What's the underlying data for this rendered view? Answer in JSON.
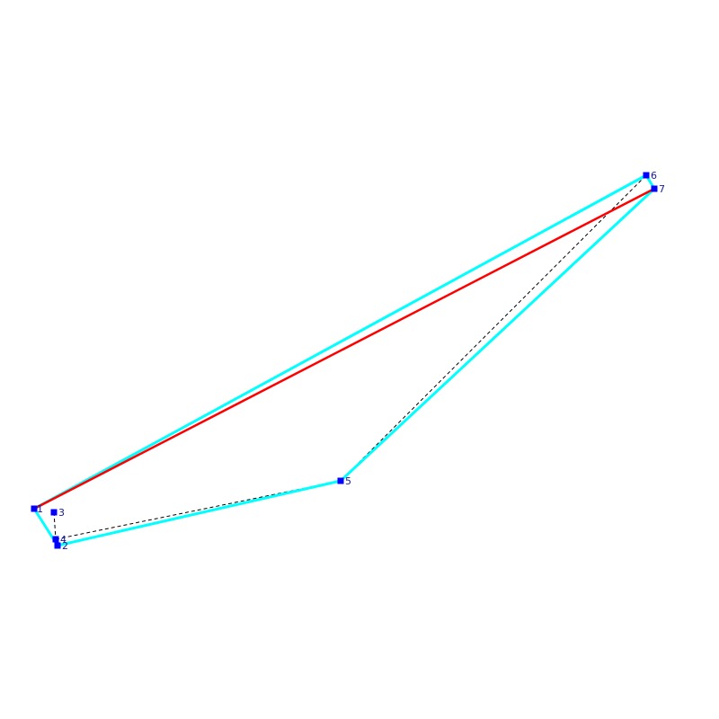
{
  "diagram": {
    "colors": {
      "background": "#ffffff",
      "hull": "#00ffff",
      "highlight": "#ff0000",
      "dashed": "#000000",
      "point": "#0000ff",
      "label": "#1a1a99"
    },
    "points": [
      {
        "id": "1",
        "label": "1"
      },
      {
        "id": "2",
        "label": "2"
      },
      {
        "id": "3",
        "label": "3"
      },
      {
        "id": "4",
        "label": "4"
      },
      {
        "id": "5",
        "label": "5"
      },
      {
        "id": "6",
        "label": "6"
      },
      {
        "id": "7",
        "label": "7"
      }
    ],
    "hull_edges": [
      [
        "1",
        "2"
      ],
      [
        "2",
        "5"
      ],
      [
        "5",
        "7"
      ],
      [
        "7",
        "6"
      ],
      [
        "6",
        "1"
      ]
    ],
    "highlight_edges": [
      [
        "1",
        "7"
      ]
    ],
    "dashed_edges": [
      [
        "3",
        "4"
      ],
      [
        "4",
        "5"
      ],
      [
        "5",
        "6"
      ]
    ]
  }
}
